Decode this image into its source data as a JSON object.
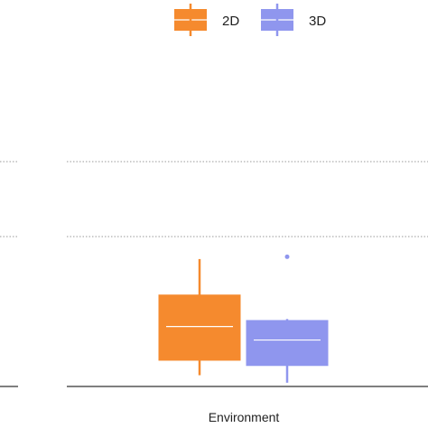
{
  "chart_data": {
    "type": "box",
    "xlabel": "Environment",
    "ylabel": "",
    "ylim": [
      0,
      4
    ],
    "grid": "dotted horizontal",
    "legend_position": "top-center",
    "categories": [
      ""
    ],
    "series": [
      {
        "name": "2D",
        "color": "#f58a2e",
        "whisker_low": 0.15,
        "q1": 0.35,
        "median": 0.8,
        "q3": 1.22,
        "whisker_high": 1.7,
        "outliers": []
      },
      {
        "name": "3D",
        "color": "#8f96ee",
        "whisker_low": 0.05,
        "q1": 0.28,
        "median": 0.62,
        "q3": 0.88,
        "whisker_high": 0.9,
        "outliers": [
          1.73
        ]
      }
    ]
  }
}
